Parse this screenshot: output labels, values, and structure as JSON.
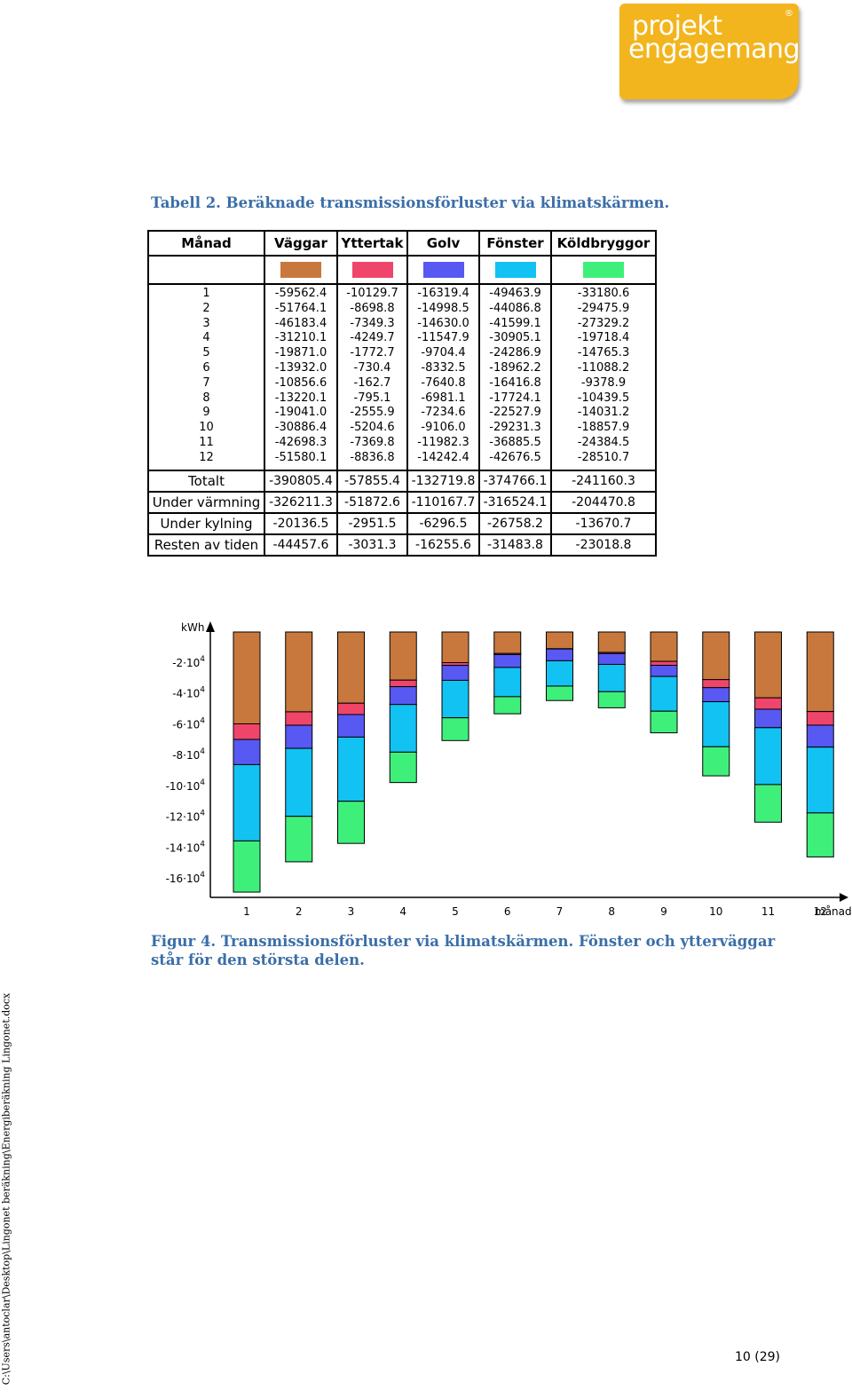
{
  "logo": {
    "line1": "projekt",
    "line2": "engagemang",
    "reg": "®"
  },
  "table_caption": "Tabell 2. Beräknade transmissionsförluster via klimatskärmen.",
  "table": {
    "headers": [
      "Månad",
      "Väggar",
      "Yttertak",
      "Golv",
      "Fönster",
      "Köldbryggor"
    ],
    "swatch_colors": [
      "#c8783c",
      "#f0456a",
      "#5858f2",
      "#12c2f2",
      "#3ef07a"
    ],
    "months": [
      "1",
      "2",
      "3",
      "4",
      "5",
      "6",
      "7",
      "8",
      "9",
      "10",
      "11",
      "12"
    ],
    "columns": [
      [
        "-59562.4",
        "-51764.1",
        "-46183.4",
        "-31210.1",
        "-19871.0",
        "-13932.0",
        "-10856.6",
        "-13220.1",
        "-19041.0",
        "-30886.4",
        "-42698.3",
        "-51580.1"
      ],
      [
        "-10129.7",
        "-8698.8",
        "-7349.3",
        "-4249.7",
        "-1772.7",
        "-730.4",
        "-162.7",
        "-795.1",
        "-2555.9",
        "-5204.6",
        "-7369.8",
        "-8836.8"
      ],
      [
        "-16319.4",
        "-14998.5",
        "-14630.0",
        "-11547.9",
        "-9704.4",
        "-8332.5",
        "-7640.8",
        "-6981.1",
        "-7234.6",
        "-9106.0",
        "-11982.3",
        "-14242.4"
      ],
      [
        "-49463.9",
        "-44086.8",
        "-41599.1",
        "-30905.1",
        "-24286.9",
        "-18962.2",
        "-16416.8",
        "-17724.1",
        "-22527.9",
        "-29231.3",
        "-36885.5",
        "-42676.5"
      ],
      [
        "-33180.6",
        "-29475.9",
        "-27329.2",
        "-19718.4",
        "-14765.3",
        "-11088.2",
        "-9378.9",
        "-10439.5",
        "-14031.2",
        "-18857.9",
        "-24384.5",
        "-28510.7"
      ]
    ],
    "summary": [
      {
        "label": "Totalt",
        "values": [
          "-390805.4",
          "-57855.4",
          "-132719.8",
          "-374766.1",
          "-241160.3"
        ]
      },
      {
        "label": "Under värmning",
        "values": [
          "-326211.3",
          "-51872.6",
          "-110167.7",
          "-316524.1",
          "-204470.8"
        ]
      },
      {
        "label": "Under kylning",
        "values": [
          "-20136.5",
          "-2951.5",
          "-6296.5",
          "-26758.2",
          "-13670.7"
        ]
      },
      {
        "label": "Resten av tiden",
        "values": [
          "-44457.6",
          "-3031.3",
          "-16255.6",
          "-31483.8",
          "-23018.8"
        ]
      }
    ]
  },
  "chart_data": {
    "type": "bar",
    "stacked": true,
    "ylabel": "kWh",
    "xlabel": "månad",
    "ylim": [
      -165000,
      0
    ],
    "yticks": [
      {
        "value": -20000,
        "base": "-2·10",
        "exp": "4"
      },
      {
        "value": -40000,
        "base": "-4·10",
        "exp": "4"
      },
      {
        "value": -60000,
        "base": "-6·10",
        "exp": "4"
      },
      {
        "value": -80000,
        "base": "-8·10",
        "exp": "4"
      },
      {
        "value": -100000,
        "base": "-10·10",
        "exp": "4"
      },
      {
        "value": -120000,
        "base": "-12·10",
        "exp": "4"
      },
      {
        "value": -140000,
        "base": "-14·10",
        "exp": "4"
      },
      {
        "value": -160000,
        "base": "-16·10",
        "exp": "4"
      }
    ],
    "categories": [
      "1",
      "2",
      "3",
      "4",
      "5",
      "6",
      "7",
      "8",
      "9",
      "10",
      "11",
      "12"
    ],
    "series": [
      {
        "name": "Väggar",
        "color": "#c8783c",
        "values": [
          -59562.4,
          -51764.1,
          -46183.4,
          -31210.1,
          -19871.0,
          -13932.0,
          -10856.6,
          -13220.1,
          -19041.0,
          -30886.4,
          -42698.3,
          -51580.1
        ]
      },
      {
        "name": "Yttertak",
        "color": "#f0456a",
        "values": [
          -10129.7,
          -8698.8,
          -7349.3,
          -4249.7,
          -1772.7,
          -730.4,
          -162.7,
          -795.1,
          -2555.9,
          -5204.6,
          -7369.8,
          -8836.8
        ]
      },
      {
        "name": "Golv",
        "color": "#5858f2",
        "values": [
          -16319.4,
          -14998.5,
          -14630.0,
          -11547.9,
          -9704.4,
          -8332.5,
          -7640.8,
          -6981.1,
          -7234.6,
          -9106.0,
          -11982.3,
          -14242.4
        ]
      },
      {
        "name": "Fönster",
        "color": "#12c2f2",
        "values": [
          -49463.9,
          -44086.8,
          -41599.1,
          -30905.1,
          -24286.9,
          -18962.2,
          -16416.8,
          -17724.1,
          -22527.9,
          -29231.3,
          -36885.5,
          -42676.5
        ]
      },
      {
        "name": "Köldbryggor",
        "color": "#3ef07a",
        "values": [
          -33180.6,
          -29475.9,
          -27329.2,
          -19718.4,
          -14765.3,
          -11088.2,
          -9378.9,
          -10439.5,
          -14031.2,
          -18857.9,
          -24384.5,
          -28510.7
        ]
      }
    ],
    "grid": false
  },
  "figure_caption": "Figur 4. Transmissionsförluster via klimatskärmen. Fönster och ytterväggar står för den största delen.",
  "footer_path": "C:\\Users\\antoclar\\Desktop\\Lingonet beräkning\\Energiberäkning Lingonet.docx",
  "page_number": "10 (29)"
}
